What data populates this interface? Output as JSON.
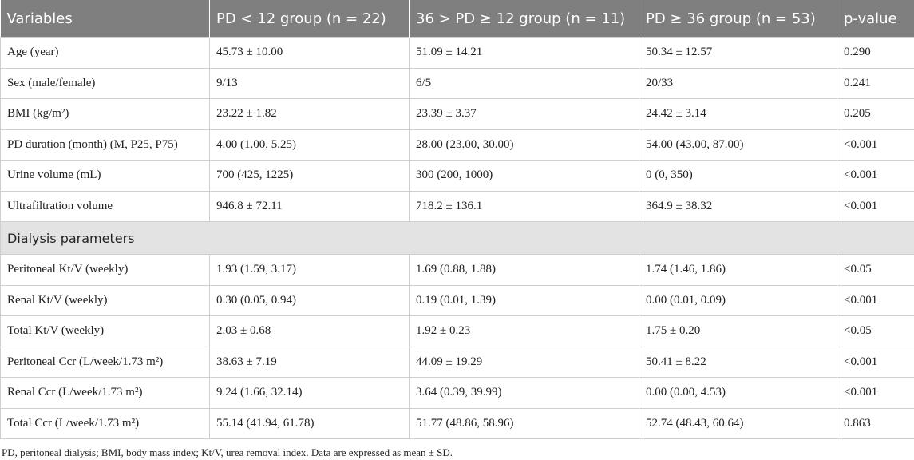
{
  "table": {
    "header": [
      "Variables",
      "PD < 12 group (n = 22)",
      "36 > PD ≥ 12 group (n = 11)",
      "PD ≥ 36 group (n = 53)",
      "p-value"
    ],
    "groups": [
      {
        "rows": [
          [
            "Age (year)",
            "45.73 ± 10.00",
            "51.09 ± 14.21",
            "50.34 ± 12.57",
            "0.290"
          ],
          [
            "Sex (male/female)",
            "9/13",
            "6/5",
            "20/33",
            "0.241"
          ],
          [
            "BMI (kg/m²)",
            "23.22 ± 1.82",
            "23.39 ± 3.37",
            "24.42 ± 3.14",
            "0.205"
          ],
          [
            "PD duration (month) (M, P25, P75)",
            "4.00 (1.00, 5.25)",
            "28.00 (23.00, 30.00)",
            "54.00 (43.00, 87.00)",
            "<0.001"
          ],
          [
            "Urine volume (mL)",
            "700 (425, 1225)",
            "300 (200, 1000)",
            "0 (0, 350)",
            "<0.001"
          ],
          [
            "Ultrafiltration volume",
            "946.8 ± 72.11",
            "718.2 ± 136.1",
            "364.9 ± 38.32",
            "<0.001"
          ]
        ]
      },
      {
        "title": "Dialysis parameters",
        "rows": [
          [
            "Peritoneal Kt/V (weekly)",
            "1.93 (1.59, 3.17)",
            "1.69 (0.88, 1.88)",
            "1.74 (1.46, 1.86)",
            "<0.05"
          ],
          [
            "Renal Kt/V (weekly)",
            "0.30 (0.05, 0.94)",
            "0.19 (0.01, 1.39)",
            "0.00 (0.01, 0.09)",
            "<0.001"
          ],
          [
            "Total Kt/V (weekly)",
            "2.03 ± 0.68",
            "1.92 ± 0.23",
            "1.75 ± 0.20",
            "<0.05"
          ],
          [
            "Peritoneal Ccr (L/week/1.73 m²)",
            "38.63 ± 7.19",
            "44.09 ± 19.29",
            "50.41 ± 8.22",
            "<0.001"
          ],
          [
            "Renal Ccr (L/week/1.73 m²)",
            "9.24 (1.66, 32.14)",
            "3.64 (0.39, 39.99)",
            "0.00 (0.00, 4.53)",
            "<0.001"
          ],
          [
            "Total Ccr (L/week/1.73 m²)",
            "55.14 (41.94, 61.78)",
            "51.77 (48.86, 58.96)",
            "52.74 (48.43, 60.64)",
            "0.863"
          ]
        ]
      }
    ]
  },
  "footnote": "PD, peritoneal dialysis; BMI, body mass index; Kt/V, urea removal index. Data are expressed as mean ± SD."
}
